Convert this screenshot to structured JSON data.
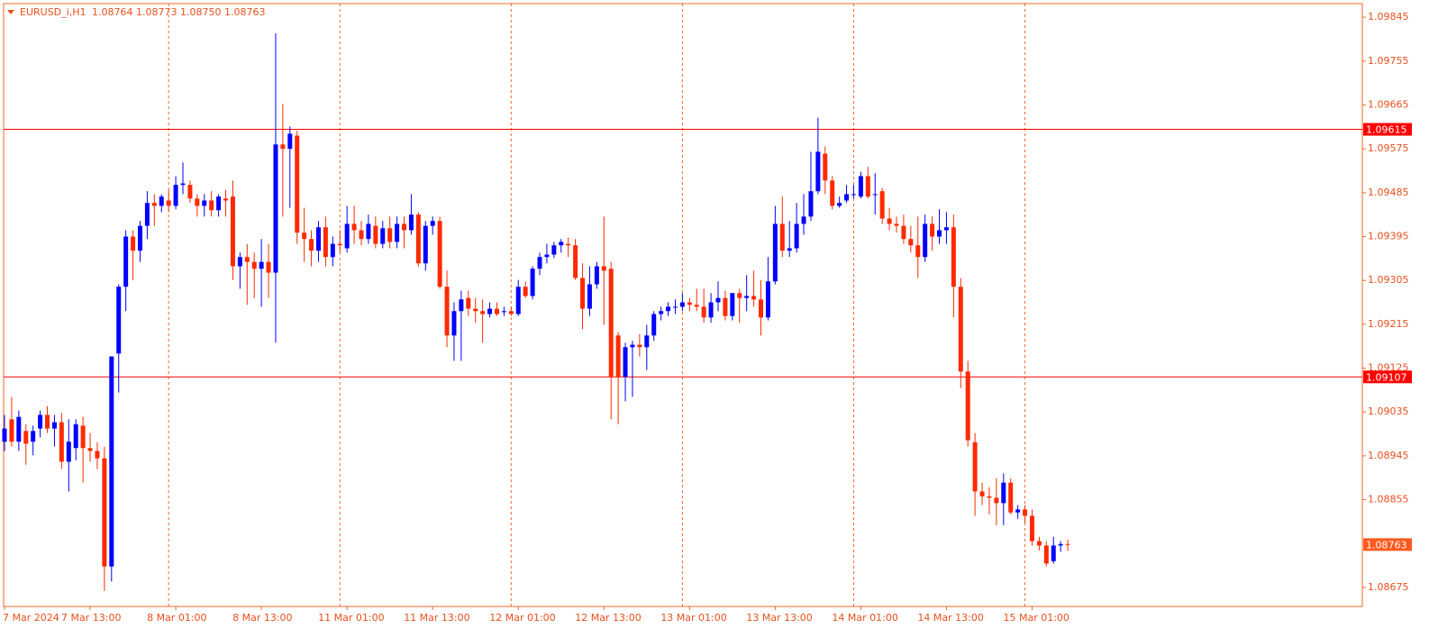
{
  "chart_data": {
    "type": "candlestick",
    "title": "EURUSD_i,H1",
    "ohlc_label": "1.08764 1.08773 1.08750 1.08763",
    "categories": [
      "7 Mar 2024",
      null,
      null,
      null,
      null,
      null,
      null,
      null,
      null,
      null,
      null,
      null,
      "7 Mar 13:00",
      null,
      null,
      null,
      null,
      null,
      null,
      null,
      null,
      null,
      null,
      null,
      "8 Mar 01:00",
      null,
      null,
      null,
      null,
      null,
      null,
      null,
      null,
      null,
      null,
      null,
      "8 Mar 13:00",
      null,
      null,
      null,
      null,
      null,
      null,
      null,
      null,
      null,
      null,
      null,
      "11 Mar 01:00",
      null,
      null,
      null,
      null,
      null,
      null,
      null,
      null,
      null,
      null,
      null,
      "11 Mar 13:00",
      null,
      null,
      null,
      null,
      null,
      null,
      null,
      null,
      null,
      null,
      null,
      "12 Mar 01:00",
      null,
      null,
      null,
      null,
      null,
      null,
      null,
      null,
      null,
      null,
      null,
      "12 Mar 13:00",
      null,
      null,
      null,
      null,
      null,
      null,
      null,
      null,
      null,
      null,
      null,
      "13 Mar 01:00",
      null,
      null,
      null,
      null,
      null,
      null,
      null,
      null,
      null,
      null,
      null,
      "13 Mar 13:00",
      null,
      null,
      null,
      null,
      null,
      null,
      null,
      null,
      null,
      null,
      null,
      "14 Mar 01:00",
      null,
      null,
      null,
      null,
      null,
      null,
      null,
      null,
      null,
      null,
      null,
      "14 Mar 13:00",
      null,
      null,
      null,
      null,
      null,
      null,
      null,
      null,
      null,
      null,
      null,
      "15 Mar 01:00",
      null,
      null,
      null,
      null,
      null
    ],
    "open": [
      1.08974,
      1.0902,
      1.08974,
      1.08996,
      1.08974,
      1.09001,
      1.09029,
      1.09001,
      1.09014,
      1.08933,
      1.08961,
      1.09007,
      1.08961,
      1.08955,
      1.0894,
      1.08718,
      1.09155,
      1.09292,
      1.09395,
      1.09366,
      1.09417,
      1.09464,
      1.09458,
      1.09469,
      1.09458,
      1.09501,
      1.09501,
      1.09473,
      1.09458,
      1.09469,
      1.09449,
      1.09473,
      1.09477,
      1.09334,
      1.09353,
      1.09343,
      1.09329,
      1.09343,
      1.09321,
      1.09584,
      1.09575,
      1.09602,
      1.09403,
      1.0939,
      1.09366,
      1.09414,
      1.09353,
      1.0938,
      1.09371,
      1.09421,
      1.09408,
      1.0939,
      1.09417,
      1.0938,
      1.09412,
      1.09384,
      1.09421,
      1.09408,
      1.0944,
      1.0934,
      1.09417,
      1.09427,
      1.09292,
      1.09192,
      1.09242,
      1.09269,
      1.09247,
      1.09242,
      1.09236,
      1.09247,
      1.0924,
      1.09242,
      1.09236,
      1.09292,
      1.09273,
      1.09329,
      1.09353,
      1.09358,
      1.09377,
      1.0938,
      1.09377,
      1.0931,
      1.09247,
      1.09297,
      1.09334,
      1.09329,
      1.09192,
      1.09107,
      1.09168,
      1.09173,
      1.09168,
      1.09192,
      1.09236,
      1.09242,
      1.09251,
      1.09251,
      1.0926,
      1.09255,
      1.09251,
      1.09229,
      1.0926,
      1.09269,
      1.09232,
      1.09279,
      1.09269,
      1.09273,
      1.09266,
      1.09229,
      1.09303,
      1.09421,
      1.09366,
      1.09371,
      1.09421,
      1.09436,
      1.09488,
      1.09565,
      1.0951,
      1.09458,
      1.09469,
      1.09482,
      1.09477,
      1.09519,
      1.09482,
      1.09488,
      1.09432,
      1.09421,
      1.09417,
      1.0939,
      1.09377,
      1.09353,
      1.09421,
      1.09395,
      1.09408,
      1.09414,
      1.09292,
      1.09118,
      1.08973,
      1.08872,
      1.08862,
      1.08859,
      1.08848,
      1.0889,
      1.08829,
      1.08835,
      1.08822,
      1.0877,
      1.08761,
      1.08729,
      1.08761,
      1.08764
    ],
    "high": [
      1.09029,
      1.09066,
      1.09038,
      1.0901,
      1.09007,
      1.09038,
      1.09047,
      1.09029,
      1.09033,
      1.0902,
      1.0902,
      1.09025,
      1.08992,
      1.08973,
      1.08964,
      1.09149,
      1.09297,
      1.09408,
      1.09408,
      1.09427,
      1.09488,
      1.09482,
      1.09482,
      1.09491,
      1.09519,
      1.09547,
      1.0951,
      1.09482,
      1.09482,
      1.09488,
      1.09482,
      1.09491,
      1.0951,
      1.09362,
      1.0938,
      1.09362,
      1.0939,
      1.0938,
      1.09812,
      1.09667,
      1.09621,
      1.09612,
      1.09454,
      1.09408,
      1.09427,
      1.09436,
      1.09395,
      1.09408,
      1.09458,
      1.09458,
      1.09427,
      1.0944,
      1.09436,
      1.09427,
      1.09436,
      1.09436,
      1.09436,
      1.09482,
      1.09445,
      1.09427,
      1.09436,
      1.09436,
      1.09325,
      1.0926,
      1.09284,
      1.09284,
      1.09269,
      1.09266,
      1.0926,
      1.0926,
      1.09251,
      1.09251,
      1.09306,
      1.09303,
      1.09334,
      1.09362,
      1.0938,
      1.09384,
      1.0939,
      1.09393,
      1.0939,
      1.0934,
      1.09334,
      1.09343,
      1.09436,
      1.09343,
      1.09199,
      1.09177,
      1.09181,
      1.09195,
      1.09214,
      1.09242,
      1.09251,
      1.0926,
      1.09266,
      1.09279,
      1.09269,
      1.09288,
      1.09288,
      1.09279,
      1.09303,
      1.09284,
      1.09279,
      1.09288,
      1.09316,
      1.09325,
      1.09306,
      1.09353,
      1.09458,
      1.09477,
      1.09427,
      1.09464,
      1.09482,
      1.09569,
      1.09639,
      1.0958,
      1.09519,
      1.09477,
      1.09501,
      1.09501,
      1.09528,
      1.09538,
      1.09525,
      1.09495,
      1.09454,
      1.09436,
      1.0944,
      1.09417,
      1.09436,
      1.0944,
      1.09436,
      1.09451,
      1.09445,
      1.0944,
      1.0931,
      1.0914,
      1.08992,
      1.0889,
      1.08881,
      1.08899,
      1.08909,
      1.08899,
      1.08844,
      1.08844,
      1.08835,
      1.08779,
      1.0877,
      1.08779,
      1.0877,
      1.08773
    ],
    "low": [
      1.08955,
      1.08964,
      1.08955,
      1.08927,
      1.08946,
      1.08983,
      1.08992,
      1.08964,
      1.08918,
      1.08872,
      1.08936,
      1.0889,
      1.08933,
      1.08918,
      1.08668,
      1.08687,
      1.09075,
      1.09242,
      1.09306,
      1.09343,
      1.0939,
      1.09417,
      1.09445,
      1.09445,
      1.09451,
      1.09482,
      1.09464,
      1.09436,
      1.09436,
      1.09436,
      1.09436,
      1.09436,
      1.09306,
      1.09288,
      1.09255,
      1.09269,
      1.09251,
      1.09269,
      1.09177,
      1.09436,
      1.09454,
      1.0938,
      1.09343,
      1.09334,
      1.09343,
      1.09334,
      1.09334,
      1.09362,
      1.09362,
      1.0938,
      1.09377,
      1.0938,
      1.09371,
      1.09371,
      1.09371,
      1.09371,
      1.09371,
      1.09399,
      1.09334,
      1.09325,
      1.09399,
      1.09288,
      1.09168,
      1.0914,
      1.0914,
      1.09232,
      1.09218,
      1.09177,
      1.09229,
      1.09232,
      1.09232,
      1.09232,
      1.09232,
      1.09269,
      1.09266,
      1.09316,
      1.0934,
      1.09351,
      1.09362,
      1.09353,
      1.09306,
      1.09205,
      1.09232,
      1.09288,
      1.09214,
      1.0902,
      1.0901,
      1.09057,
      1.09066,
      1.09149,
      1.09121,
      1.09181,
      1.09223,
      1.09232,
      1.09236,
      1.09242,
      1.09242,
      1.09242,
      1.09218,
      1.09218,
      1.09242,
      1.09223,
      1.09223,
      1.09218,
      1.09242,
      1.09251,
      1.09192,
      1.09223,
      1.09297,
      1.09353,
      1.09353,
      1.09362,
      1.09399,
      1.09427,
      1.09482,
      1.09482,
      1.09451,
      1.09454,
      1.09464,
      1.09473,
      1.09473,
      1.09473,
      1.0944,
      1.09421,
      1.09408,
      1.09403,
      1.0938,
      1.09362,
      1.0931,
      1.09343,
      1.09366,
      1.0938,
      1.0938,
      1.09229,
      1.09084,
      1.08964,
      1.08822,
      1.08844,
      1.08825,
      1.08803,
      1.08803,
      1.08825,
      1.08816,
      1.08807,
      1.08761,
      1.08751,
      1.08718,
      1.08724,
      1.08748,
      1.0875
    ],
    "close": [
      1.09001,
      1.08974,
      1.09025,
      1.0897,
      1.08996,
      1.09029,
      1.09001,
      1.09014,
      1.08933,
      1.08974,
      1.0901,
      1.08961,
      1.08955,
      1.0894,
      1.08718,
      1.09149,
      1.09292,
      1.09395,
      1.09366,
      1.09417,
      1.09464,
      1.09458,
      1.09477,
      1.09458,
      1.09501,
      1.09504,
      1.09473,
      1.09458,
      1.09469,
      1.09449,
      1.09477,
      1.09469,
      1.09334,
      1.09353,
      1.09343,
      1.09329,
      1.09343,
      1.09321,
      1.09584,
      1.09575,
      1.09606,
      1.09403,
      1.0939,
      1.09366,
      1.09414,
      1.09353,
      1.0938,
      1.09377,
      1.09421,
      1.09408,
      1.0939,
      1.09421,
      1.0938,
      1.09412,
      1.09384,
      1.09421,
      1.09408,
      1.0944,
      1.0934,
      1.09417,
      1.09427,
      1.09292,
      1.09192,
      1.09242,
      1.09266,
      1.09247,
      1.09242,
      1.09236,
      1.09247,
      1.09236,
      1.09242,
      1.09236,
      1.09292,
      1.09273,
      1.09329,
      1.09353,
      1.09358,
      1.09377,
      1.09384,
      1.09377,
      1.0931,
      1.09247,
      1.09297,
      1.09334,
      1.09325,
      1.09107,
      1.09107,
      1.09168,
      1.09173,
      1.09168,
      1.09192,
      1.09236,
      1.09242,
      1.09251,
      1.09251,
      1.0926,
      1.09255,
      1.09251,
      1.09229,
      1.0926,
      1.09269,
      1.09232,
      1.09279,
      1.09269,
      1.09273,
      1.09266,
      1.09229,
      1.09303,
      1.09421,
      1.09366,
      1.09371,
      1.09421,
      1.09436,
      1.09488,
      1.09569,
      1.0951,
      1.09458,
      1.09464,
      1.09482,
      1.09482,
      1.09519,
      1.09477,
      1.09482,
      1.09432,
      1.09421,
      1.09417,
      1.0939,
      1.09377,
      1.09353,
      1.09421,
      1.09395,
      1.09408,
      1.09414,
      1.09292,
      1.09118,
      1.08977,
      1.08872,
      1.08862,
      1.08859,
      1.08848,
      1.0889,
      1.08829,
      1.08835,
      1.08822,
      1.0877,
      1.08761,
      1.08724,
      1.08761,
      1.08764,
      1.08763
    ],
    "up_color": "#0000ff",
    "down_color": "#ff2a00",
    "axis_color": "#f06a2a",
    "ylim": [
      1.08636,
      1.09873
    ],
    "yticks": [
      1.09845,
      1.09755,
      1.09665,
      1.09575,
      1.09485,
      1.09395,
      1.09305,
      1.09215,
      1.09125,
      1.09035,
      1.08945,
      1.08855,
      1.08675
    ],
    "hlines": [
      1.09615,
      1.09107
    ],
    "hline_color": "#ff0000",
    "price_line_color": "#ff5a1e",
    "period_separators": true
  }
}
